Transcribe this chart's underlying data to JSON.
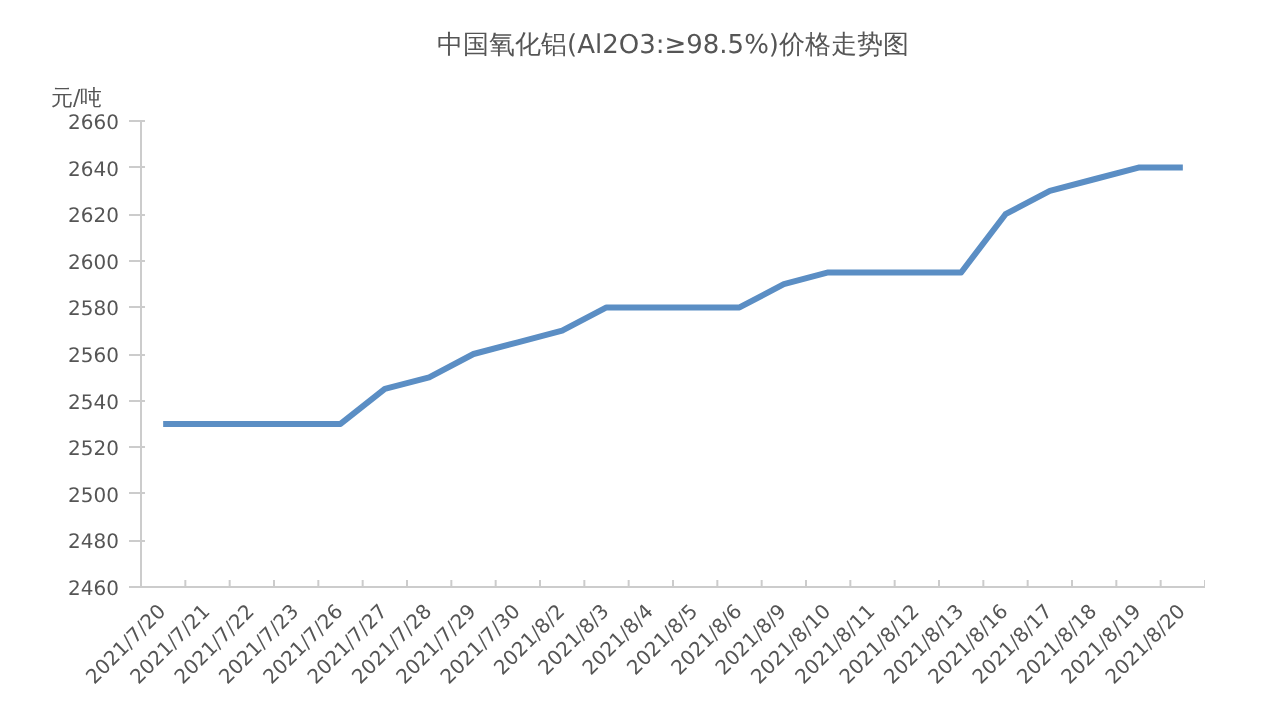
{
  "chart_data": {
    "type": "line",
    "title": "中国氧化铝(Al2O3:≥98.5%)价格走势图",
    "ylabel": "元/吨",
    "categories": [
      "2021/7/20",
      "2021/7/21",
      "2021/7/22",
      "2021/7/23",
      "2021/7/26",
      "2021/7/27",
      "2021/7/28",
      "2021/7/29",
      "2021/7/30",
      "2021/8/2",
      "2021/8/3",
      "2021/8/4",
      "2021/8/5",
      "2021/8/6",
      "2021/8/9",
      "2021/8/10",
      "2021/8/11",
      "2021/8/12",
      "2021/8/13",
      "2021/8/16",
      "2021/8/17",
      "2021/8/18",
      "2021/8/19",
      "2021/8/20"
    ],
    "series": [
      {
        "color": "#5b8ec4",
        "values": [
          2530,
          2530,
          2530,
          2530,
          2530,
          2545,
          2550,
          2560,
          2565,
          2570,
          2580,
          2580,
          2580,
          2580,
          2590,
          2595,
          2595,
          2595,
          2595,
          2620,
          2630,
          2635,
          2640,
          2640
        ]
      }
    ],
    "ylim": [
      2460,
      2660
    ],
    "yticks": [
      2460,
      2480,
      2500,
      2520,
      2540,
      2560,
      2580,
      2600,
      2620,
      2640,
      2660
    ],
    "grid": false,
    "marker": "none",
    "line_style": "solid"
  }
}
